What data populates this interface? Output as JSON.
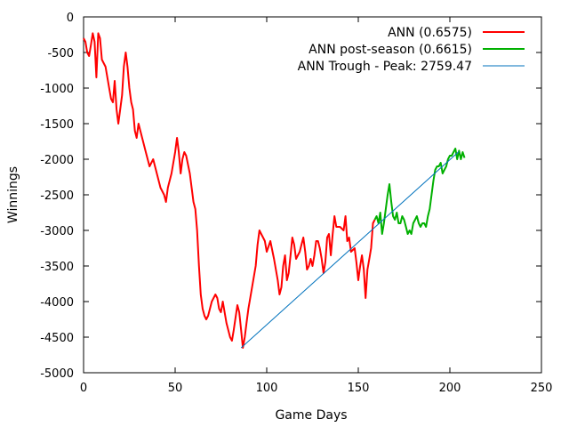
{
  "chart_data": {
    "type": "line",
    "title": "",
    "xlabel": "Game Days",
    "ylabel": "Winnings",
    "xlim": [
      0,
      250
    ],
    "ylim": [
      -5000,
      0
    ],
    "x_ticks": [
      0,
      50,
      100,
      150,
      200,
      250
    ],
    "y_ticks": [
      0,
      -500,
      -1000,
      -1500,
      -2000,
      -2500,
      -3000,
      -3500,
      -4000,
      -4500,
      -5000
    ],
    "x_tick_labels": [
      "0",
      "50",
      "100",
      "150",
      "200",
      "250"
    ],
    "y_tick_labels": [
      "0",
      "-500",
      "-1000",
      "-1500",
      "-2000",
      "-2500",
      "-3000",
      "-3500",
      "-4000",
      "-4500",
      "-5000"
    ],
    "grid": false,
    "legend_position": "top-right",
    "series": [
      {
        "name": "ANN (0.6575)",
        "color": "#ff0000",
        "x": [
          0,
          1,
          2,
          3,
          4,
          5,
          6,
          7,
          8,
          9,
          10,
          12,
          14,
          15,
          16,
          17,
          18,
          19,
          20,
          21,
          22,
          23,
          24,
          25,
          26,
          27,
          28,
          29,
          30,
          32,
          34,
          36,
          38,
          40,
          42,
          44,
          45,
          46,
          48,
          50,
          51,
          52,
          53,
          54,
          55,
          56,
          58,
          60,
          61,
          62,
          63,
          64,
          65,
          66,
          67,
          68,
          70,
          72,
          73,
          74,
          75,
          76,
          78,
          80,
          81,
          82,
          84,
          85,
          86,
          87,
          88,
          89,
          90,
          92,
          94,
          95,
          96,
          97,
          98,
          99,
          100,
          102,
          104,
          106,
          107,
          108,
          109,
          110,
          111,
          112,
          113,
          114,
          115,
          116,
          118,
          119,
          120,
          121,
          122,
          123,
          124,
          125,
          126,
          127,
          128,
          129,
          130,
          131,
          132,
          133,
          134,
          135,
          136,
          137,
          138,
          140,
          142,
          143,
          144,
          145,
          146,
          148,
          149,
          150,
          151,
          152,
          153,
          154,
          155,
          156,
          157,
          158,
          159
        ],
        "y": [
          -300,
          -350,
          -500,
          -550,
          -400,
          -230,
          -350,
          -850,
          -230,
          -300,
          -600,
          -700,
          -1000,
          -1150,
          -1200,
          -900,
          -1300,
          -1500,
          -1300,
          -1100,
          -700,
          -500,
          -700,
          -1000,
          -1200,
          -1300,
          -1600,
          -1700,
          -1500,
          -1700,
          -1900,
          -2100,
          -2000,
          -2200,
          -2400,
          -2500,
          -2600,
          -2400,
          -2200,
          -1900,
          -1700,
          -1900,
          -2200,
          -2000,
          -1900,
          -1950,
          -2200,
          -2600,
          -2700,
          -3000,
          -3500,
          -3900,
          -4100,
          -4200,
          -4250,
          -4200,
          -4000,
          -3900,
          -3950,
          -4100,
          -4150,
          -4000,
          -4300,
          -4500,
          -4550,
          -4400,
          -4050,
          -4150,
          -4400,
          -4650,
          -4500,
          -4300,
          -4100,
          -3800,
          -3500,
          -3200,
          -3000,
          -3050,
          -3100,
          -3150,
          -3300,
          -3150,
          -3400,
          -3700,
          -3900,
          -3800,
          -3500,
          -3350,
          -3700,
          -3600,
          -3350,
          -3100,
          -3200,
          -3400,
          -3300,
          -3200,
          -3100,
          -3300,
          -3550,
          -3500,
          -3400,
          -3500,
          -3350,
          -3150,
          -3150,
          -3250,
          -3400,
          -3600,
          -3450,
          -3100,
          -3050,
          -3350,
          -3050,
          -2800,
          -2950,
          -2950,
          -3000,
          -2800,
          -3150,
          -3100,
          -3300,
          -3250,
          -3450,
          -3700,
          -3500,
          -3350,
          -3550,
          -3950,
          -3550,
          -3400,
          -3250,
          -2900,
          -2850
        ]
      },
      {
        "name": "ANN post-season (0.6615)",
        "color": "#00b000",
        "x": [
          159,
          160,
          161,
          162,
          163,
          164,
          165,
          166,
          167,
          168,
          169,
          170,
          171,
          172,
          173,
          174,
          175,
          176,
          177,
          178,
          179,
          180,
          181,
          182,
          183,
          184,
          185,
          186,
          187,
          188,
          189,
          190,
          191,
          192,
          193,
          194,
          195,
          196,
          197,
          198,
          199,
          200,
          201,
          202,
          203,
          204,
          205,
          206,
          207,
          208
        ],
        "y": [
          -2850,
          -2800,
          -2900,
          -2750,
          -3050,
          -2900,
          -2700,
          -2500,
          -2350,
          -2600,
          -2800,
          -2850,
          -2750,
          -2900,
          -2900,
          -2800,
          -2850,
          -2950,
          -3050,
          -3000,
          -3050,
          -2900,
          -2850,
          -2800,
          -2900,
          -2950,
          -2900,
          -2900,
          -2950,
          -2800,
          -2700,
          -2500,
          -2300,
          -2150,
          -2100,
          -2100,
          -2050,
          -2200,
          -2150,
          -2100,
          -2000,
          -1950,
          -1950,
          -1900,
          -1850,
          -2000,
          -1880,
          -2000,
          -1900,
          -1980
        ]
      },
      {
        "name": "ANN Trough - Peak: 2759.47",
        "color": "#0072bd",
        "x": [
          86,
          205
        ],
        "y": [
          -4650,
          -1890
        ]
      }
    ]
  }
}
